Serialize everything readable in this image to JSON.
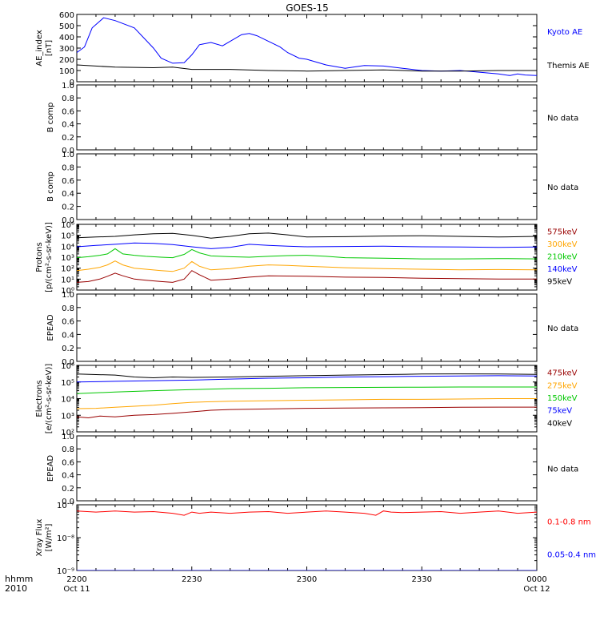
{
  "title": "GOES-15",
  "colors": {
    "black": "#000000",
    "blue": "#0000ff",
    "red": "#c00000",
    "orange": "#ffa500",
    "green": "#00c800",
    "darkred": "#990000"
  },
  "time_axis": {
    "ticks": [
      {
        "t": 0,
        "label": "2200",
        "sub": "Oct 11"
      },
      {
        "t": 30,
        "label": "2230",
        "sub": ""
      },
      {
        "t": 60,
        "label": "2300",
        "sub": ""
      },
      {
        "t": 90,
        "label": "2330",
        "sub": ""
      },
      {
        "t": 120,
        "label": "0000",
        "sub": "Oct 12"
      }
    ],
    "corner_label_1": "hhmm",
    "corner_label_2": "2010"
  },
  "chart_data": [
    {
      "type": "line",
      "ylabel": "AE_index\n[nT]",
      "ylim": [
        0,
        600
      ],
      "yscale": "linear",
      "yticks": [
        0,
        100,
        200,
        300,
        400,
        500,
        600
      ],
      "yticklabels": [
        "0",
        "100",
        "200",
        "300",
        "400",
        "500",
        "600"
      ],
      "series": [
        {
          "name": "Kyoto AE",
          "color": "#0000ff",
          "x": [
            0,
            2,
            4,
            7,
            10,
            15,
            20,
            22,
            25,
            28,
            30,
            32,
            35,
            38,
            40,
            43,
            45,
            47,
            50,
            53,
            55,
            58,
            60,
            65,
            70,
            75,
            80,
            85,
            90,
            95,
            100,
            105,
            110,
            113,
            115,
            117,
            120
          ],
          "y": [
            260,
            310,
            480,
            570,
            545,
            480,
            300,
            210,
            165,
            170,
            240,
            330,
            350,
            320,
            360,
            420,
            430,
            410,
            360,
            310,
            260,
            210,
            200,
            150,
            120,
            145,
            140,
            120,
            100,
            95,
            100,
            85,
            70,
            55,
            70,
            60,
            55
          ]
        },
        {
          "name": "Themis AE",
          "color": "#000000",
          "x": [
            0,
            10,
            20,
            25,
            30,
            40,
            50,
            60,
            70,
            80,
            90,
            100,
            110,
            120
          ],
          "y": [
            150,
            130,
            125,
            130,
            110,
            110,
            100,
            95,
            100,
            105,
            95,
            95,
            100,
            100
          ]
        }
      ]
    },
    {
      "type": "line",
      "ylabel": "B comp",
      "ylim": [
        0,
        1
      ],
      "yscale": "linear",
      "yticks": [
        0,
        0.2,
        0.4,
        0.6,
        0.8,
        1.0
      ],
      "yticklabels": [
        "0.0",
        "0.2",
        "0.4",
        "0.6",
        "0.8",
        "1.0"
      ],
      "note": "No data",
      "series": []
    },
    {
      "type": "line",
      "ylabel": "B comp",
      "ylim": [
        0,
        1
      ],
      "yscale": "linear",
      "yticks": [
        0,
        0.2,
        0.4,
        0.6,
        0.8,
        1.0
      ],
      "yticklabels": [
        "0.0",
        "0.2",
        "0.4",
        "0.6",
        "0.8",
        "1.0"
      ],
      "note": "No data",
      "series": []
    },
    {
      "type": "line",
      "ylabel": "Protons\n[p/(cm²-s-sr-keV)]",
      "ylim": [
        1,
        1000000
      ],
      "yscale": "log",
      "yticks": [
        1,
        10,
        100,
        1000,
        10000,
        100000,
        1000000
      ],
      "yticklabels": [
        "10⁰",
        "10¹",
        "10²",
        "10³",
        "10⁴",
        "10⁵",
        "10⁶"
      ],
      "series": [
        {
          "name": "95keV",
          "color": "#000000",
          "x": [
            0,
            5,
            10,
            15,
            20,
            25,
            30,
            35,
            40,
            45,
            50,
            55,
            60,
            70,
            80,
            90,
            100,
            110,
            120
          ],
          "y": [
            60000,
            70000,
            80000,
            110000,
            140000,
            150000,
            100000,
            55000,
            80000,
            140000,
            160000,
            110000,
            70000,
            75000,
            85000,
            90000,
            80000,
            70000,
            80000
          ]
        },
        {
          "name": "140keV",
          "color": "#0000ff",
          "x": [
            0,
            5,
            10,
            15,
            20,
            25,
            30,
            35,
            40,
            45,
            50,
            55,
            60,
            70,
            80,
            90,
            100,
            110,
            120
          ],
          "y": [
            9000,
            12000,
            15000,
            20000,
            18000,
            14000,
            9000,
            6000,
            8000,
            15000,
            12000,
            10000,
            9000,
            9500,
            10000,
            9000,
            8500,
            8000,
            8500
          ]
        },
        {
          "name": "210keV",
          "color": "#00c800",
          "x": [
            0,
            3,
            6,
            8,
            10,
            12,
            15,
            18,
            22,
            25,
            28,
            30,
            32,
            35,
            40,
            45,
            50,
            55,
            60,
            65,
            70,
            80,
            90,
            100,
            110,
            120
          ],
          "y": [
            900,
            1100,
            1500,
            2000,
            6000,
            2000,
            1500,
            1200,
            1000,
            900,
            1800,
            5000,
            2500,
            1300,
            1100,
            1000,
            1200,
            1400,
            1500,
            1200,
            900,
            800,
            700,
            700,
            750,
            700
          ]
        },
        {
          "name": "300keV",
          "color": "#ffa500",
          "x": [
            0,
            3,
            6,
            8,
            10,
            12,
            15,
            18,
            22,
            25,
            28,
            30,
            32,
            35,
            40,
            45,
            50,
            55,
            60,
            70,
            80,
            90,
            100,
            110,
            120
          ],
          "y": [
            60,
            80,
            120,
            200,
            450,
            200,
            100,
            80,
            60,
            50,
            100,
            400,
            150,
            70,
            90,
            150,
            200,
            180,
            150,
            110,
            90,
            80,
            70,
            75,
            70
          ]
        },
        {
          "name": "575keV",
          "color": "#990000",
          "x": [
            0,
            3,
            6,
            8,
            10,
            12,
            15,
            18,
            22,
            25,
            28,
            30,
            32,
            35,
            40,
            45,
            50,
            60,
            70,
            80,
            90,
            100,
            110,
            120
          ],
          "y": [
            5,
            6,
            10,
            18,
            35,
            20,
            10,
            8,
            6,
            5,
            10,
            60,
            25,
            8,
            10,
            15,
            20,
            18,
            15,
            14,
            12,
            11,
            10,
            10
          ]
        }
      ]
    },
    {
      "type": "line",
      "ylabel": "EPEAD",
      "ylim": [
        0,
        1
      ],
      "yscale": "linear",
      "yticks": [
        0,
        0.2,
        0.4,
        0.6,
        0.8,
        1.0
      ],
      "yticklabels": [
        "0.0",
        "0.2",
        "0.4",
        "0.6",
        "0.8",
        "1.0"
      ],
      "note": "No data",
      "series": []
    },
    {
      "type": "line",
      "ylabel": "Electrons\n[e/(cm²-s-sr-keV)]",
      "ylim": [
        100,
        1000000
      ],
      "yscale": "log",
      "yticks": [
        100,
        1000,
        10000,
        100000,
        1000000
      ],
      "yticklabels": [
        "10²",
        "10³",
        "10⁴",
        "10⁵",
        "10⁶"
      ],
      "series": [
        {
          "name": "40keV",
          "color": "#000000",
          "x": [
            0,
            5,
            10,
            15,
            20,
            25,
            30,
            40,
            50,
            60,
            70,
            80,
            90,
            100,
            110,
            120
          ],
          "y": [
            300000,
            280000,
            260000,
            200000,
            180000,
            200000,
            190000,
            200000,
            220000,
            240000,
            260000,
            280000,
            300000,
            310000,
            300000,
            290000
          ]
        },
        {
          "name": "75keV",
          "color": "#0000ff",
          "x": [
            0,
            10,
            20,
            30,
            40,
            50,
            60,
            70,
            80,
            90,
            100,
            110,
            120
          ],
          "y": [
            100000,
            110000,
            120000,
            130000,
            150000,
            170000,
            180000,
            200000,
            210000,
            220000,
            230000,
            240000,
            230000
          ]
        },
        {
          "name": "150keV",
          "color": "#00c800",
          "x": [
            0,
            10,
            20,
            30,
            40,
            50,
            60,
            70,
            80,
            90,
            100,
            110,
            120
          ],
          "y": [
            20000,
            25000,
            30000,
            35000,
            40000,
            42000,
            45000,
            47000,
            48000,
            49000,
            50000,
            50000,
            50000
          ]
        },
        {
          "name": "275keV",
          "color": "#ffa500",
          "x": [
            0,
            5,
            10,
            15,
            20,
            25,
            30,
            40,
            50,
            60,
            70,
            80,
            90,
            100,
            110,
            120
          ],
          "y": [
            2500,
            2600,
            3000,
            3500,
            4000,
            5000,
            6000,
            7000,
            7500,
            8000,
            8500,
            9000,
            9000,
            9500,
            10000,
            10000
          ]
        },
        {
          "name": "475keV",
          "color": "#990000",
          "x": [
            0,
            3,
            6,
            10,
            15,
            20,
            25,
            30,
            35,
            40,
            50,
            60,
            70,
            80,
            90,
            100,
            110,
            120
          ],
          "y": [
            800,
            700,
            900,
            800,
            1000,
            1100,
            1300,
            1600,
            2000,
            2200,
            2400,
            2600,
            2700,
            2800,
            2900,
            3000,
            3100,
            3100
          ]
        }
      ]
    },
    {
      "type": "line",
      "ylabel": "EPEAD",
      "ylim": [
        0,
        1
      ],
      "yscale": "linear",
      "yticks": [
        0,
        0.2,
        0.4,
        0.6,
        0.8,
        1.0
      ],
      "yticklabels": [
        "0.0",
        "0.2",
        "0.4",
        "0.6",
        "0.8",
        "1.0"
      ],
      "note": "No data",
      "series": []
    },
    {
      "type": "line",
      "ylabel": "Xray Flux\n[W/m²]",
      "ylim": [
        1e-09,
        1e-07
      ],
      "yscale": "log",
      "yticks": [
        1e-09,
        1e-08,
        1e-07
      ],
      "yticklabels": [
        "10⁻⁹",
        "10⁻⁸",
        "10⁻⁷"
      ],
      "series": [
        {
          "name": "0.1-0.8 nm",
          "color": "#ff0000",
          "x": [
            0,
            5,
            10,
            15,
            20,
            25,
            28,
            30,
            32,
            35,
            40,
            45,
            50,
            55,
            60,
            65,
            70,
            75,
            78,
            80,
            82,
            85,
            90,
            95,
            100,
            105,
            110,
            115,
            120
          ],
          "y": [
            6.5e-08,
            6e-08,
            6.5e-08,
            6e-08,
            6.2e-08,
            5.5e-08,
            4.8e-08,
            6e-08,
            5.5e-08,
            6e-08,
            5.5e-08,
            6e-08,
            6.2e-08,
            5.5e-08,
            6e-08,
            6.5e-08,
            6e-08,
            5.5e-08,
            4.8e-08,
            6.5e-08,
            6e-08,
            5.8e-08,
            6e-08,
            6.2e-08,
            5.5e-08,
            6e-08,
            6.5e-08,
            5.5e-08,
            6e-08
          ]
        },
        {
          "name": "0.05-0.4 nm",
          "color": "#0000ff",
          "x": [
            0,
            120
          ],
          "y": [
            1e-09,
            1e-09
          ]
        }
      ]
    }
  ]
}
